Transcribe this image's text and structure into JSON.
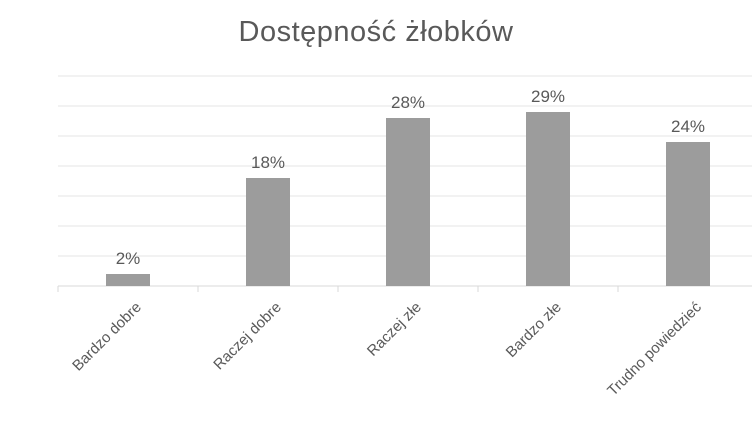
{
  "chart_data": {
    "type": "bar",
    "title": "Dostępność żłobków",
    "categories": [
      "Bardzo dobre",
      "Raczej dobre",
      "Raczej złe",
      "Bardzo złe",
      "Trudno powiedzieć"
    ],
    "values": [
      2,
      18,
      28,
      29,
      24
    ],
    "data_labels": [
      "2%",
      "18%",
      "28%",
      "29%",
      "24%"
    ],
    "xlabel": "",
    "ylabel": "",
    "ylim": [
      0,
      35
    ],
    "grid": true,
    "legend": "none",
    "bar_color": "#9c9c9c"
  }
}
